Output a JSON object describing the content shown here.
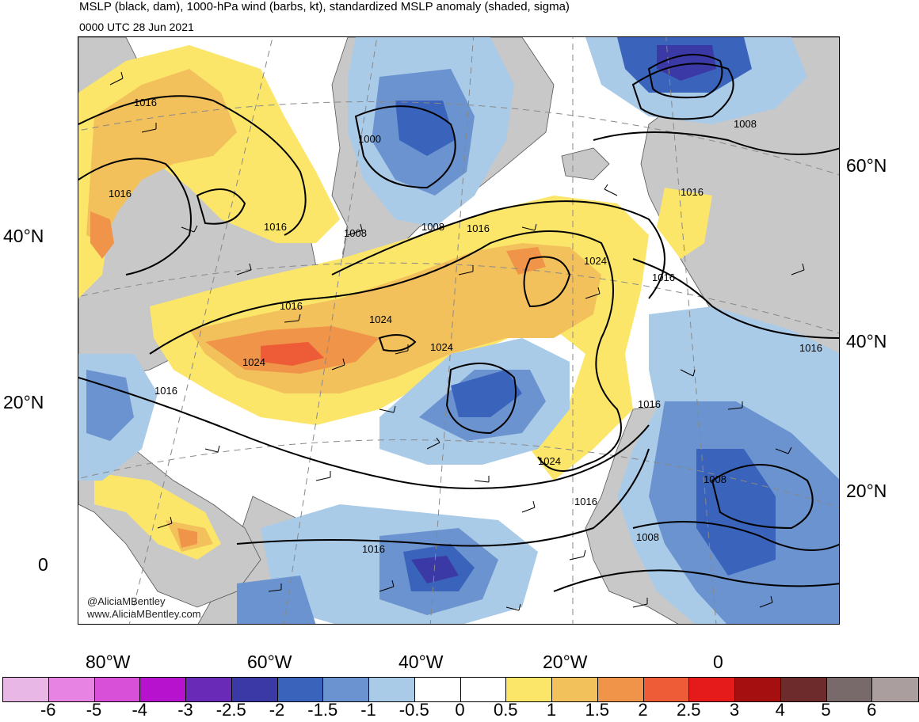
{
  "header": {
    "title": "MSLP (black, dam), 1000-hPa wind (barbs, kt), standardized MSLP anomaly (shaded, sigma)",
    "subtitle": "0000 UTC 28 Jun 2021"
  },
  "lat_labels_left": [
    "40°N",
    "20°N",
    "0"
  ],
  "lat_labels_right": [
    "60°N",
    "40°N",
    "20°N"
  ],
  "lon_labels": [
    "80°W",
    "60°W",
    "40°W",
    "20°W",
    "0"
  ],
  "contour_labels": [
    "1016",
    "1016",
    "1016",
    "1000",
    "1008",
    "1008",
    "1016",
    "1024",
    "1016",
    "1008",
    "1016",
    "1024",
    "1024",
    "1016",
    "1016",
    "1016",
    "1024",
    "1016",
    "1008",
    "1016",
    "1008",
    "1016"
  ],
  "watermark": {
    "handle": "@AliciaMBentley",
    "site": "www.AliciaMBentley.com"
  },
  "colorbar": {
    "colors": [
      "#e8b7e6",
      "#e683e3",
      "#d84fd8",
      "#b713ce",
      "#6a2ab8",
      "#3b39a6",
      "#3a64bc",
      "#6a93cf",
      "#a9cbe8",
      "#ffffff",
      "#ffffff",
      "#fbe66a",
      "#f3c15c",
      "#ef9448",
      "#ee5b37",
      "#e51b1b",
      "#a50f0f",
      "#6e2b2b",
      "#786a6a",
      "#aa9e9e"
    ],
    "labels": [
      "-6",
      "-5",
      "-4",
      "-3",
      "-2.5",
      "-2",
      "-1.5",
      "-1",
      "-0.5",
      "0",
      "0.5",
      "1",
      "1.5",
      "2",
      "2.5",
      "3",
      "4",
      "5",
      "6"
    ]
  }
}
